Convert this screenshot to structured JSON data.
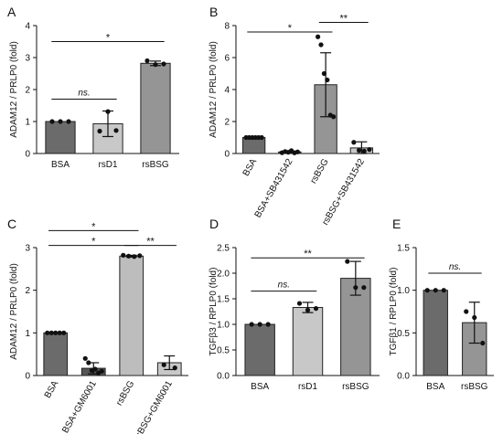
{
  "chart_data": [
    {
      "panel": "A",
      "type": "bar",
      "ylabel": "ADAM12 / PRLP0 (fold)",
      "ylim": [
        0,
        4
      ],
      "yticks": [
        0,
        1,
        2,
        3,
        4
      ],
      "rotate_labels": false,
      "categories": [
        "BSA",
        "rsD1",
        "rsBSG"
      ],
      "values": [
        1.0,
        0.93,
        2.82
      ],
      "errors": [
        0.0,
        0.4,
        0.07
      ],
      "colors": [
        "#6b6b6b",
        "#c8c8c8",
        "#959595"
      ],
      "points": [
        [
          1.0,
          1.0,
          1.0
        ],
        [
          0.7,
          1.31,
          0.72
        ],
        [
          2.9,
          2.78,
          2.8
        ]
      ],
      "annotations": [
        {
          "from": 0,
          "to": 2,
          "y": 3.5,
          "label": "*"
        },
        {
          "from": 0,
          "to": 1,
          "y": 1.7,
          "label": "ns."
        }
      ]
    },
    {
      "panel": "B",
      "type": "bar",
      "ylabel": "ADAM12 / PRLP0 (fold)",
      "ylim": [
        0,
        8
      ],
      "yticks": [
        0,
        2,
        4,
        6,
        8
      ],
      "rotate_labels": true,
      "categories": [
        "BSA",
        "BSA+SB431542",
        "rsBSG",
        "rsBSG+SB431542"
      ],
      "values": [
        1.0,
        0.1,
        4.3,
        0.35
      ],
      "errors": [
        0.0,
        0.06,
        2.0,
        0.38
      ],
      "colors": [
        "#6b6b6b",
        "#555555",
        "#959595",
        "#c8c8c8"
      ],
      "points": [
        [
          1.0,
          1.0,
          1.0,
          1.0,
          1.0,
          1.0
        ],
        [
          0.05,
          0.12,
          0.08,
          0.18,
          0.04,
          0.1
        ],
        [
          7.3,
          6.8,
          5.0,
          4.6,
          2.4,
          2.3
        ],
        [
          0.7,
          0.2,
          0.15,
          0.25
        ]
      ],
      "annotations": [
        {
          "from": 0,
          "to": 2,
          "y": 7.6,
          "label": "*"
        },
        {
          "from": 2,
          "to": 3,
          "y": 8.2,
          "label": "**"
        }
      ]
    },
    {
      "panel": "C",
      "type": "bar",
      "ylabel": "ADAM12 / PRLP0 (fold)",
      "ylim": [
        0,
        3
      ],
      "yticks": [
        0,
        1,
        2,
        3
      ],
      "rotate_labels": true,
      "categories": [
        "BSA",
        "BSA+GM6001",
        "rsBSG",
        "rsBSG+GM6001"
      ],
      "values": [
        1.0,
        0.17,
        2.8,
        0.3
      ],
      "errors": [
        0.0,
        0.13,
        0.02,
        0.16
      ],
      "colors": [
        "#6b6b6b",
        "#555555",
        "#bdbdbd",
        "#c8c8c8"
      ],
      "points": [
        [
          1.0,
          1.0,
          1.0,
          1.0,
          1.0
        ],
        [
          0.4,
          0.3,
          0.12,
          0.15,
          0.06,
          0.1
        ],
        [
          2.82,
          2.8,
          2.79,
          2.81
        ],
        [
          0.25,
          0.18
        ]
      ],
      "annotations": [
        {
          "from": 0,
          "to": 2,
          "y": 3.4,
          "label": "*"
        },
        {
          "from": 0,
          "to": 2,
          "y": 3.05,
          "label": "*"
        },
        {
          "from": 2,
          "to": 3,
          "y": 3.05,
          "label": "**"
        }
      ]
    },
    {
      "panel": "D",
      "type": "bar",
      "ylabel": "TGFβ3 / RPLP0 (fold)",
      "ylim": [
        0,
        2.5
      ],
      "yticks": [
        0.0,
        0.5,
        1.0,
        1.5,
        2.0,
        2.5
      ],
      "rotate_labels": false,
      "categories": [
        "BSA",
        "rsD1",
        "rsBSG"
      ],
      "values": [
        1.0,
        1.33,
        1.9
      ],
      "errors": [
        0.0,
        0.1,
        0.33
      ],
      "colors": [
        "#6b6b6b",
        "#c8c8c8",
        "#959595"
      ],
      "points": [
        [
          1.0,
          1.0,
          1.0
        ],
        [
          1.41,
          1.28,
          1.31
        ],
        [
          2.23,
          1.72,
          1.72
        ]
      ],
      "annotations": [
        {
          "from": 0,
          "to": 2,
          "y": 2.3,
          "label": "**"
        },
        {
          "from": 0,
          "to": 1,
          "y": 1.65,
          "label": "ns."
        }
      ]
    },
    {
      "panel": "E",
      "type": "bar",
      "ylabel": "TGFβ1 / RPLP0 (fold)",
      "ylim": [
        0,
        1.5
      ],
      "yticks": [
        0.0,
        0.5,
        1.0,
        1.5
      ],
      "rotate_labels": false,
      "categories": [
        "BSA",
        "rsBSG"
      ],
      "values": [
        1.0,
        0.62
      ],
      "errors": [
        0.0,
        0.24
      ],
      "colors": [
        "#6b6b6b",
        "#959595"
      ],
      "points": [
        [
          1.0,
          1.0,
          1.0
        ],
        [
          0.75,
          0.68,
          0.38
        ]
      ],
      "annotations": [
        {
          "from": 0,
          "to": 1,
          "y": 1.2,
          "label": "ns."
        }
      ]
    }
  ]
}
